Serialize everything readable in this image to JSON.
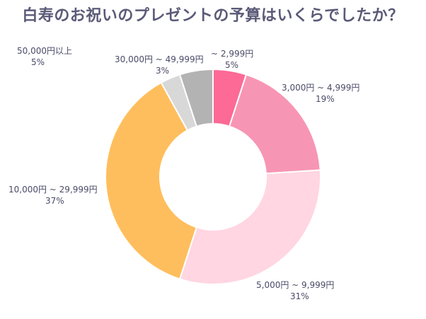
{
  "title": "白寿のお祝いのプレゼントの予算はいくらでしたか？",
  "chart_data": {
    "type": "pie",
    "donut": true,
    "unit": "%",
    "slices": [
      {
        "label": "~ 2,999円",
        "value": 5,
        "value_text": "5%",
        "color": "#fc6a95"
      },
      {
        "label": "3,000円 ~ 4,999円",
        "value": 19,
        "value_text": "19%",
        "color": "#f795b4"
      },
      {
        "label": "5,000円 ~ 9,999円",
        "value": 31,
        "value_text": "31%",
        "color": "#ffd6e2"
      },
      {
        "label": "10,000円 ~ 29,999円",
        "value": 37,
        "value_text": "37%",
        "color": "#ffbe5d"
      },
      {
        "label": "30,000円 ~ 49,999円",
        "value": 3,
        "value_text": "3%",
        "color": "#d8d8d8"
      },
      {
        "label": "50,000円以上",
        "value": 5,
        "value_text": "5%",
        "color": "#b3b3b3"
      }
    ]
  }
}
